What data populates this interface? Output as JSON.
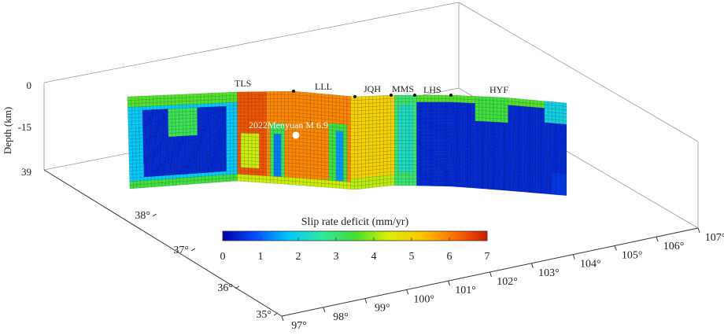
{
  "chart_data": {
    "type": "heatmap",
    "title": "",
    "axes": {
      "depth": {
        "label": "Depth (km)",
        "ticks": [
          "0",
          "-15",
          "39"
        ]
      },
      "longitude": {
        "ticks": [
          "97°",
          "98°",
          "99°",
          "100°",
          "101°",
          "102°",
          "103°",
          "104°",
          "105°",
          "106°",
          "107°"
        ]
      },
      "latitude": {
        "ticks": [
          "35°",
          "36°",
          "37°",
          "38°"
        ]
      }
    },
    "fault_segments": [
      "TLS",
      "LLL",
      "JQH",
      "MMS",
      "LHS",
      "HYF"
    ],
    "event_label": "2022Menyuan M 6.9",
    "colorbar": {
      "title": "Slip rate deficit (mm/yr)",
      "ticks": [
        "0",
        "1",
        "2",
        "3",
        "4",
        "5",
        "6",
        "7"
      ],
      "range": [
        0,
        7
      ],
      "colors": [
        "#0000a8",
        "#0050ff",
        "#00c8ff",
        "#30e8a0",
        "#40e030",
        "#d8f000",
        "#ffc800",
        "#ff7000",
        "#d01800"
      ]
    }
  }
}
